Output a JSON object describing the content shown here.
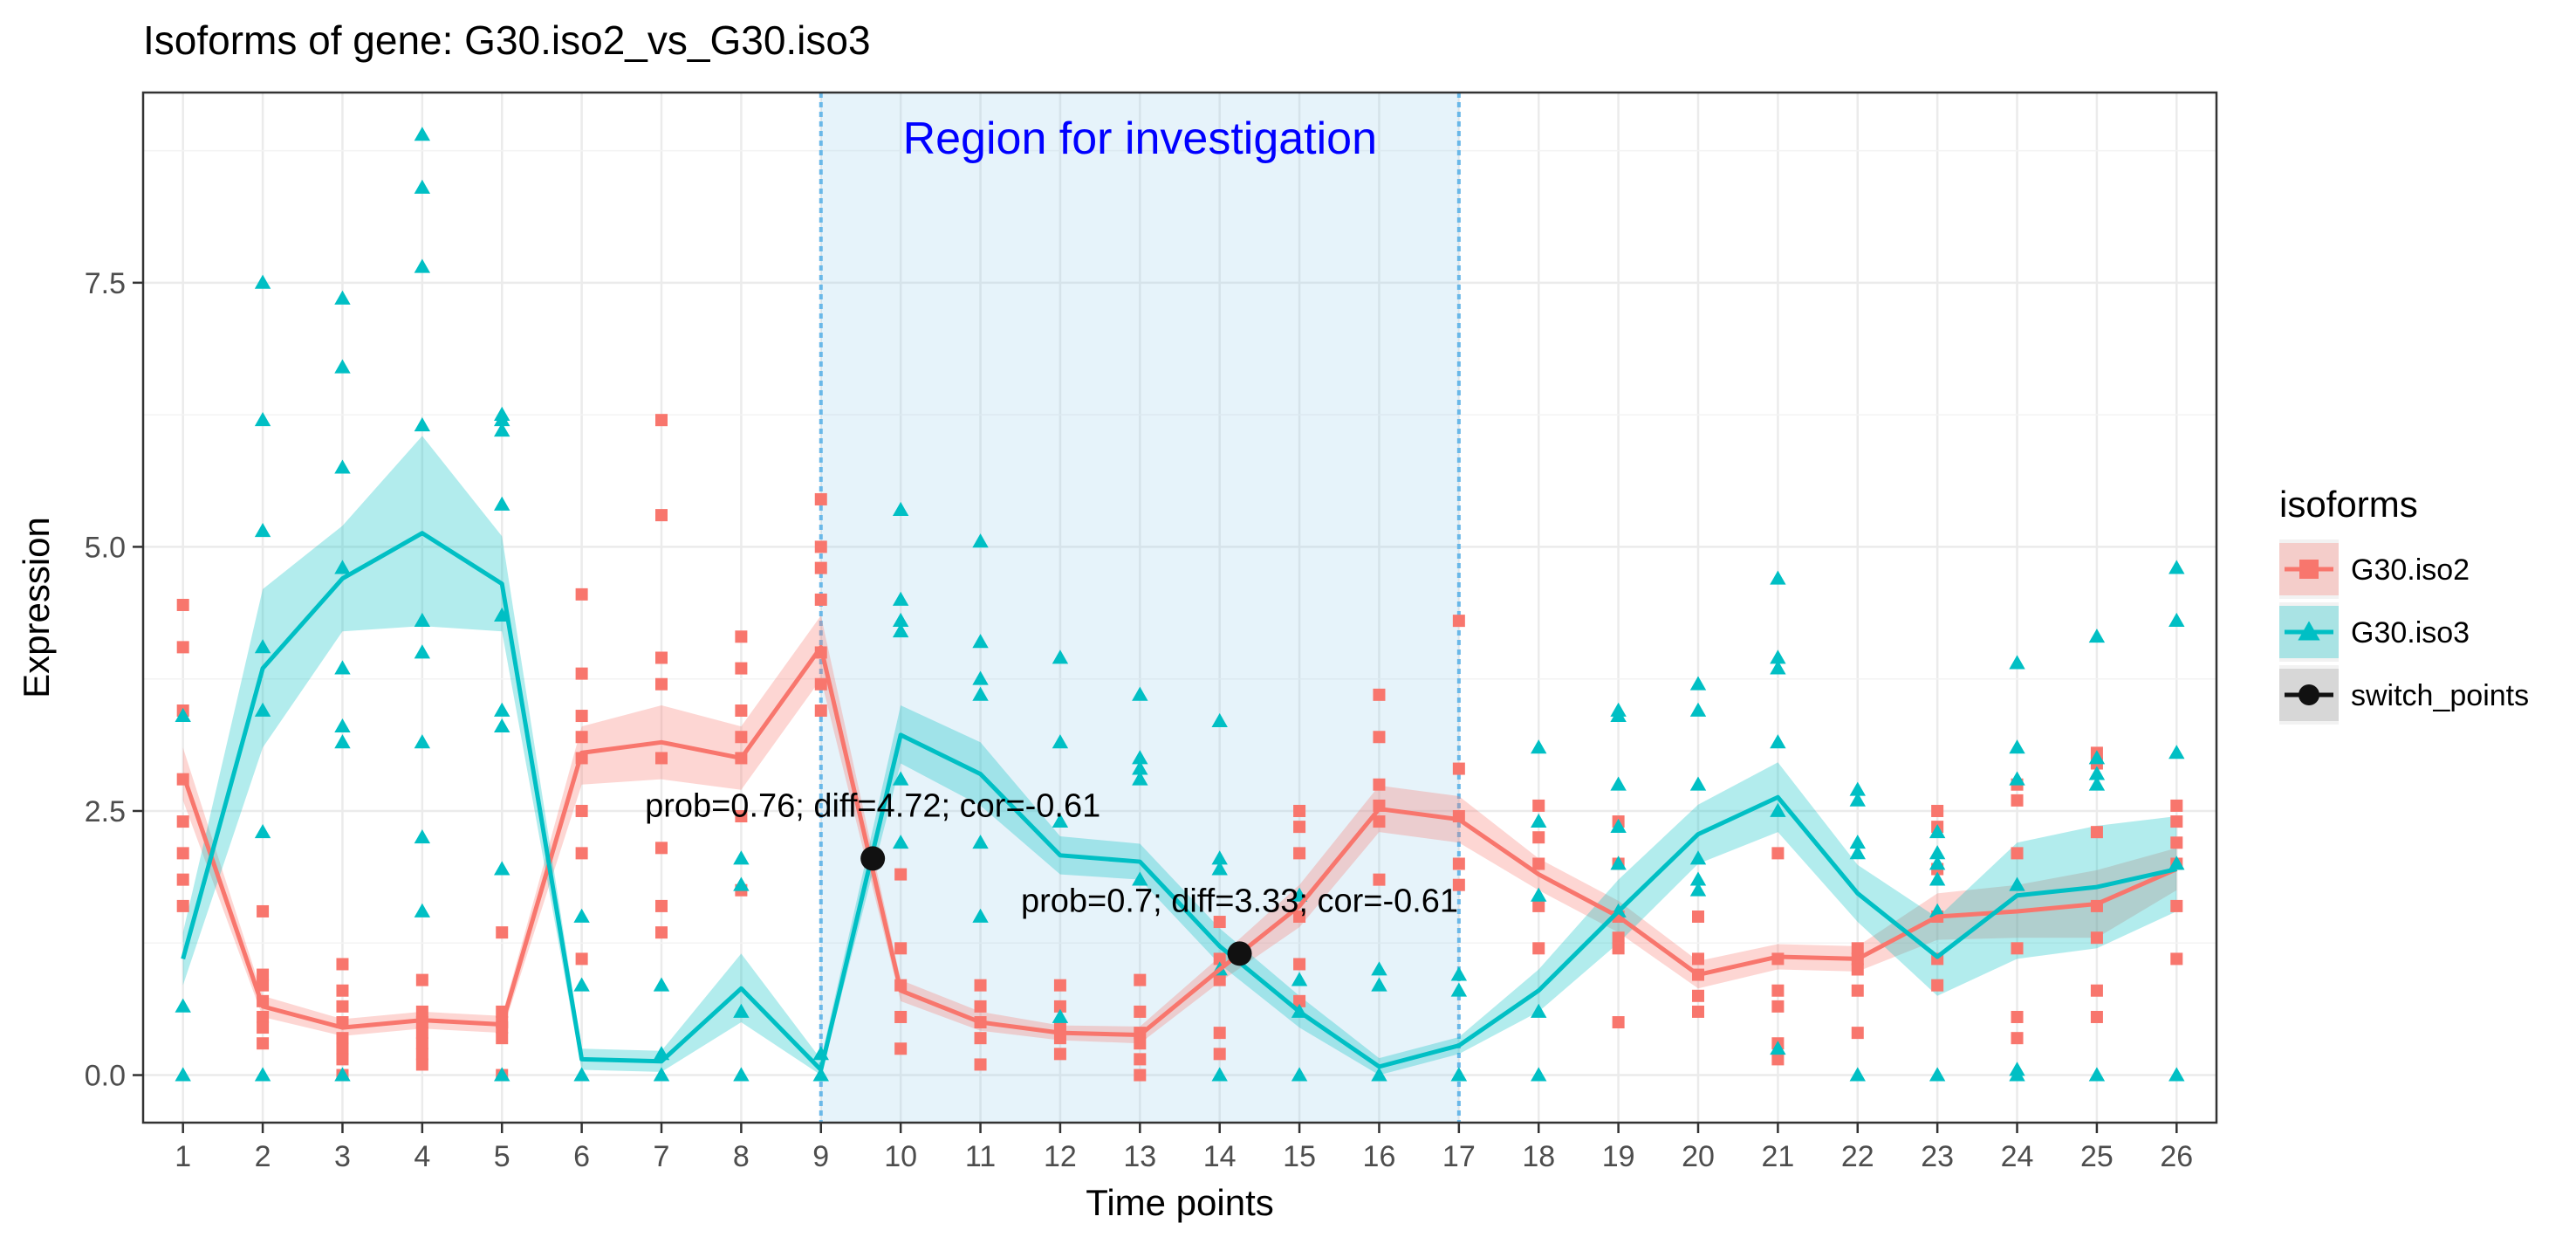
{
  "chart_data": {
    "type": "line",
    "title": "Isoforms of gene: G30.iso2_vs_G30.iso3",
    "xlabel": "Time points",
    "ylabel": "Expression",
    "xlim": [
      0.5,
      26.5
    ],
    "ylim": [
      -0.45,
      9.3
    ],
    "x_ticks": [
      1,
      2,
      3,
      4,
      5,
      6,
      7,
      8,
      9,
      10,
      11,
      12,
      13,
      14,
      15,
      16,
      17,
      18,
      19,
      20,
      21,
      22,
      23,
      24,
      25,
      26
    ],
    "y_ticks": [
      0.0,
      2.5,
      5.0,
      7.5
    ],
    "y_tick_labels": [
      "0.0",
      "2.5",
      "5.0",
      "7.5"
    ],
    "grid": true,
    "legend_title": "isoforms",
    "legend_position": "right",
    "region": {
      "x_start": 9,
      "x_end": 17,
      "label": "Region for investigation",
      "color": "#8ecae6",
      "label_color": "#0000ff"
    },
    "series": [
      {
        "name": "G30.iso2",
        "color": "#f8766d",
        "marker": "square",
        "x": [
          1,
          2,
          3,
          4,
          5,
          6,
          7,
          8,
          9,
          10,
          11,
          12,
          13,
          14,
          15,
          16,
          17,
          18,
          19,
          20,
          21,
          22,
          23,
          24,
          25,
          26
        ],
        "mean": [
          2.85,
          0.65,
          0.45,
          0.52,
          0.48,
          3.05,
          3.15,
          3.0,
          4.05,
          0.8,
          0.5,
          0.4,
          0.38,
          1.0,
          1.6,
          2.52,
          2.42,
          1.9,
          1.5,
          0.95,
          1.12,
          1.1,
          1.5,
          1.55,
          1.62,
          1.95
        ],
        "ribbon_low": [
          2.6,
          0.55,
          0.37,
          0.44,
          0.4,
          2.75,
          2.8,
          2.7,
          3.75,
          0.7,
          0.42,
          0.33,
          0.3,
          0.88,
          1.4,
          2.3,
          2.2,
          1.75,
          1.35,
          0.82,
          1.0,
          0.98,
          1.28,
          1.3,
          1.3,
          1.75
        ],
        "ribbon_high": [
          3.1,
          0.75,
          0.53,
          0.6,
          0.56,
          3.3,
          3.5,
          3.3,
          4.35,
          0.9,
          0.6,
          0.47,
          0.46,
          1.12,
          1.8,
          2.74,
          2.64,
          2.05,
          1.65,
          1.08,
          1.24,
          1.22,
          1.72,
          1.8,
          1.94,
          2.15
        ],
        "points_x": [
          1,
          1,
          1,
          1,
          1,
          1,
          1,
          1,
          2,
          2,
          2,
          2,
          2,
          2,
          2,
          3,
          3,
          3,
          3,
          3,
          3,
          3,
          3,
          4,
          4,
          4,
          4,
          4,
          4,
          4,
          5,
          5,
          5,
          5,
          5,
          5,
          6,
          6,
          6,
          6,
          6,
          6,
          6,
          6,
          7,
          7,
          7,
          7,
          7,
          7,
          7,
          7,
          8,
          8,
          8,
          8,
          8,
          8,
          8,
          9,
          9,
          9,
          9,
          9,
          9,
          9,
          10,
          10,
          10,
          10,
          10,
          11,
          11,
          11,
          11,
          11,
          12,
          12,
          12,
          12,
          12,
          13,
          13,
          13,
          13,
          13,
          13,
          14,
          14,
          14,
          14,
          14,
          15,
          15,
          15,
          15,
          15,
          15,
          16,
          16,
          16,
          16,
          16,
          16,
          17,
          17,
          17,
          17,
          17,
          18,
          18,
          18,
          18,
          18,
          19,
          19,
          19,
          19,
          19,
          19,
          20,
          20,
          20,
          20,
          20,
          21,
          21,
          21,
          21,
          21,
          21,
          22,
          22,
          22,
          22,
          22,
          23,
          23,
          23,
          23,
          23,
          23,
          24,
          24,
          24,
          24,
          24,
          24,
          25,
          25,
          25,
          25,
          25,
          25,
          25,
          26,
          26,
          26,
          26,
          26,
          26
        ],
        "points_y": [
          4.45,
          4.05,
          3.45,
          2.8,
          2.4,
          2.1,
          1.85,
          1.6,
          1.55,
          0.95,
          0.85,
          0.7,
          0.55,
          0.45,
          0.3,
          1.05,
          0.8,
          0.65,
          0.5,
          0.35,
          0.25,
          0.15,
          0.0,
          0.9,
          0.6,
          0.5,
          0.4,
          0.3,
          0.2,
          0.1,
          1.35,
          0.6,
          0.5,
          0.45,
          0.35,
          0.0,
          4.55,
          3.8,
          3.4,
          3.2,
          3.0,
          2.5,
          2.1,
          1.1,
          6.2,
          5.3,
          3.95,
          3.7,
          3.0,
          2.15,
          1.6,
          1.35,
          4.15,
          3.85,
          3.45,
          3.2,
          3.0,
          2.45,
          1.75,
          5.45,
          5.0,
          4.8,
          4.5,
          4.0,
          3.7,
          3.45,
          1.9,
          1.2,
          0.85,
          0.55,
          0.25,
          0.85,
          0.65,
          0.5,
          0.35,
          0.1,
          0.85,
          0.65,
          0.45,
          0.35,
          0.2,
          0.9,
          0.6,
          0.4,
          0.3,
          0.15,
          0.0,
          1.45,
          1.1,
          0.9,
          0.4,
          0.2,
          2.5,
          2.35,
          2.1,
          1.5,
          1.05,
          0.7,
          3.6,
          3.2,
          2.75,
          2.55,
          2.4,
          1.85,
          4.3,
          2.9,
          2.45,
          2.0,
          1.8,
          2.55,
          2.25,
          2.0,
          1.6,
          1.2,
          2.4,
          2.0,
          1.5,
          1.3,
          1.2,
          0.5,
          1.5,
          1.1,
          0.95,
          0.75,
          0.6,
          2.1,
          1.1,
          0.8,
          0.65,
          0.3,
          0.15,
          1.2,
          1.1,
          1.0,
          0.8,
          0.4,
          2.5,
          2.35,
          1.95,
          1.5,
          1.1,
          0.85,
          2.75,
          2.6,
          2.1,
          1.2,
          0.55,
          0.35,
          3.05,
          2.95,
          2.3,
          1.6,
          1.3,
          0.8,
          0.55,
          2.55,
          2.4,
          2.2,
          2.0,
          1.6,
          1.1
        ]
      },
      {
        "name": "G30.iso3",
        "color": "#00bfc4",
        "marker": "triangle",
        "x": [
          1,
          2,
          3,
          4,
          5,
          6,
          7,
          8,
          9,
          10,
          11,
          12,
          13,
          14,
          15,
          16,
          17,
          18,
          19,
          20,
          21,
          22,
          23,
          24,
          25,
          26
        ],
        "mean": [
          1.1,
          3.85,
          4.7,
          5.13,
          4.65,
          0.15,
          0.13,
          0.82,
          0.05,
          3.22,
          2.85,
          2.08,
          2.02,
          1.22,
          0.6,
          0.08,
          0.28,
          0.8,
          1.55,
          2.28,
          2.63,
          1.72,
          1.12,
          1.7,
          1.78,
          1.95
        ],
        "ribbon_low": [
          0.85,
          3.1,
          4.2,
          4.25,
          4.2,
          0.05,
          0.03,
          0.5,
          0.0,
          2.95,
          2.55,
          1.9,
          1.85,
          1.05,
          0.45,
          0.0,
          0.2,
          0.6,
          1.25,
          2.0,
          2.3,
          1.45,
          0.75,
          1.1,
          1.2,
          1.55
        ],
        "ribbon_high": [
          1.35,
          4.6,
          5.2,
          6.05,
          5.1,
          0.25,
          0.23,
          1.15,
          0.15,
          3.5,
          3.15,
          2.26,
          2.19,
          1.39,
          0.75,
          0.16,
          0.36,
          1.0,
          1.85,
          2.56,
          2.96,
          1.99,
          1.49,
          2.2,
          2.36,
          2.45
        ],
        "points_x": [
          1,
          1,
          1,
          2,
          2,
          2,
          2,
          2,
          2,
          2,
          3,
          3,
          3,
          3,
          3,
          3,
          3,
          3,
          4,
          4,
          4,
          4,
          4,
          4,
          4,
          4,
          4,
          5,
          5,
          5,
          5,
          5,
          5,
          5,
          5,
          5,
          6,
          6,
          6,
          7,
          7,
          7,
          8,
          8,
          8,
          8,
          9,
          9,
          10,
          10,
          10,
          10,
          10,
          10,
          11,
          11,
          11,
          11,
          11,
          11,
          12,
          12,
          12,
          12,
          13,
          13,
          13,
          13,
          13,
          14,
          14,
          14,
          14,
          14,
          15,
          15,
          15,
          15,
          16,
          16,
          16,
          17,
          17,
          17,
          17,
          18,
          18,
          18,
          18,
          18,
          19,
          19,
          19,
          19,
          19,
          19,
          20,
          20,
          20,
          20,
          20,
          20,
          21,
          21,
          21,
          21,
          21,
          21,
          22,
          22,
          22,
          22,
          22,
          23,
          23,
          23,
          23,
          23,
          23,
          24,
          24,
          24,
          24,
          24,
          24,
          25,
          25,
          25,
          25,
          25,
          26,
          26,
          26,
          26,
          26
        ],
        "points_y": [
          3.4,
          0.65,
          0.0,
          7.5,
          6.2,
          5.15,
          4.05,
          3.45,
          2.3,
          0.0,
          7.35,
          6.7,
          5.75,
          4.8,
          3.85,
          3.3,
          3.15,
          0.0,
          8.9,
          8.4,
          7.65,
          6.15,
          4.3,
          4.0,
          3.15,
          2.25,
          1.55,
          6.25,
          6.2,
          6.1,
          5.4,
          4.35,
          3.45,
          3.3,
          1.95,
          0.0,
          1.5,
          0.85,
          0.0,
          0.85,
          0.2,
          0.0,
          2.05,
          1.8,
          0.6,
          0.0,
          0.2,
          0.0,
          5.35,
          4.5,
          4.3,
          4.2,
          2.8,
          2.2,
          5.05,
          4.1,
          3.75,
          3.6,
          2.2,
          1.5,
          3.95,
          3.15,
          2.4,
          0.55,
          3.6,
          3.0,
          2.9,
          2.8,
          1.85,
          3.35,
          2.05,
          1.95,
          1.0,
          0.0,
          1.7,
          0.9,
          0.6,
          0.0,
          1.0,
          0.85,
          0.0,
          0.95,
          0.8,
          0.0,
          0.0,
          3.1,
          2.4,
          1.7,
          0.6,
          0.0,
          3.45,
          3.4,
          2.75,
          2.35,
          2.0,
          1.55,
          3.7,
          3.45,
          2.75,
          2.05,
          1.75,
          1.85,
          4.7,
          3.95,
          3.85,
          3.15,
          2.5,
          0.25,
          2.7,
          2.6,
          2.2,
          2.1,
          0.0,
          2.3,
          2.1,
          2.0,
          1.85,
          1.55,
          0.0,
          3.9,
          3.1,
          2.8,
          1.8,
          0.05,
          0.0,
          4.15,
          3.0,
          2.85,
          2.75,
          0.0,
          4.8,
          4.3,
          3.05,
          2.0,
          0.0
        ]
      },
      {
        "name": "switch_points",
        "color": "#111111",
        "marker": "circle",
        "x": [
          9.65,
          14.25
        ],
        "y": [
          2.05,
          1.15
        ]
      }
    ],
    "annotations": [
      {
        "text": "prob=0.76; diff=4.72; cor=-0.61",
        "x": 9.65,
        "y": 2.05
      },
      {
        "text": "prob=0.7; diff=3.33; cor=-0.61",
        "x": 14.25,
        "y": 1.15
      }
    ],
    "axis_color": "#333333",
    "grid_color": "#ebebeb"
  }
}
